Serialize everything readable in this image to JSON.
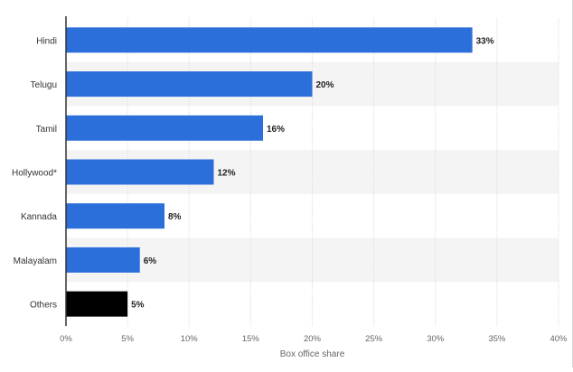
{
  "chart_data": {
    "type": "bar",
    "orientation": "horizontal",
    "categories": [
      "Hindi",
      "Telugu",
      "Tamil",
      "Hollywood*",
      "Kannada",
      "Malayalam",
      "Others"
    ],
    "values": [
      33,
      20,
      16,
      12,
      8,
      6,
      5
    ],
    "value_labels": [
      "33%",
      "20%",
      "16%",
      "12%",
      "8%",
      "6%",
      "5%"
    ],
    "xlabel": "Box office share",
    "ylabel": "",
    "xlim": [
      0,
      40
    ],
    "x_ticks": [
      0,
      5,
      10,
      15,
      20,
      25,
      30,
      35,
      40
    ],
    "x_tick_labels": [
      "0%",
      "5%",
      "10%",
      "15%",
      "20%",
      "25%",
      "30%",
      "35%",
      "40%"
    ],
    "grid": "vertical",
    "alternating_row_bands": true,
    "colors": {
      "bar": "#2c6fdb",
      "highlight_bar": "#000000",
      "grid": "#dddddd",
      "band": "#f4f4f4",
      "axis": "#333333"
    },
    "bar_colors": [
      "#2c6fdb",
      "#2c6fdb",
      "#2c6fdb",
      "#2c6fdb",
      "#2c6fdb",
      "#2c6fdb",
      "#000000"
    ]
  }
}
